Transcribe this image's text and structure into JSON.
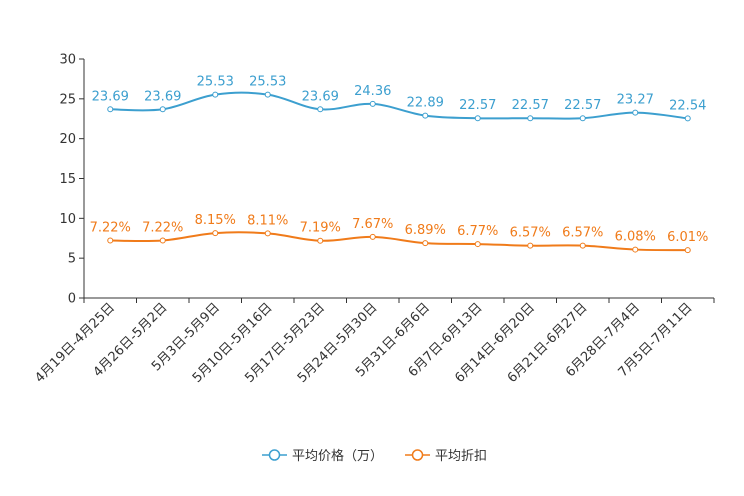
{
  "chart_data": {
    "type": "line",
    "categories": [
      "4月19日-4月25日",
      "4月26日-5月2日",
      "5月3日-5月9日",
      "5月10日-5月16日",
      "5月17日-5月23日",
      "5月24日-5月30日",
      "5月31日-6月6日",
      "6月7日-6月13日",
      "6月14日-6月20日",
      "6月21日-6月27日",
      "6月28日-7月4日",
      "7月5日-7月11日"
    ],
    "ylim": [
      0,
      30
    ],
    "yticks": [
      0,
      5,
      10,
      15,
      20,
      25,
      30
    ],
    "series": [
      {
        "name": "平均价格（万）",
        "color": "#3c9fcf",
        "values": [
          23.69,
          23.69,
          25.53,
          25.53,
          23.69,
          24.36,
          22.89,
          22.57,
          22.57,
          22.57,
          23.27,
          22.54
        ],
        "labels": [
          "23.69",
          "23.69",
          "25.53",
          "25.53",
          "23.69",
          "24.36",
          "22.89",
          "22.57",
          "22.57",
          "22.57",
          "23.27",
          "22.54"
        ]
      },
      {
        "name": "平均折扣",
        "color": "#f07b1a",
        "values": [
          7.22,
          7.22,
          8.15,
          8.11,
          7.19,
          7.67,
          6.89,
          6.77,
          6.57,
          6.57,
          6.08,
          6.01
        ],
        "labels": [
          "7.22%",
          "7.22%",
          "8.15%",
          "8.11%",
          "7.19%",
          "7.67%",
          "6.89%",
          "6.77%",
          "6.57%",
          "6.57%",
          "6.08%",
          "6.01%"
        ]
      }
    ],
    "grid": false,
    "legend_position": "bottom-center"
  }
}
